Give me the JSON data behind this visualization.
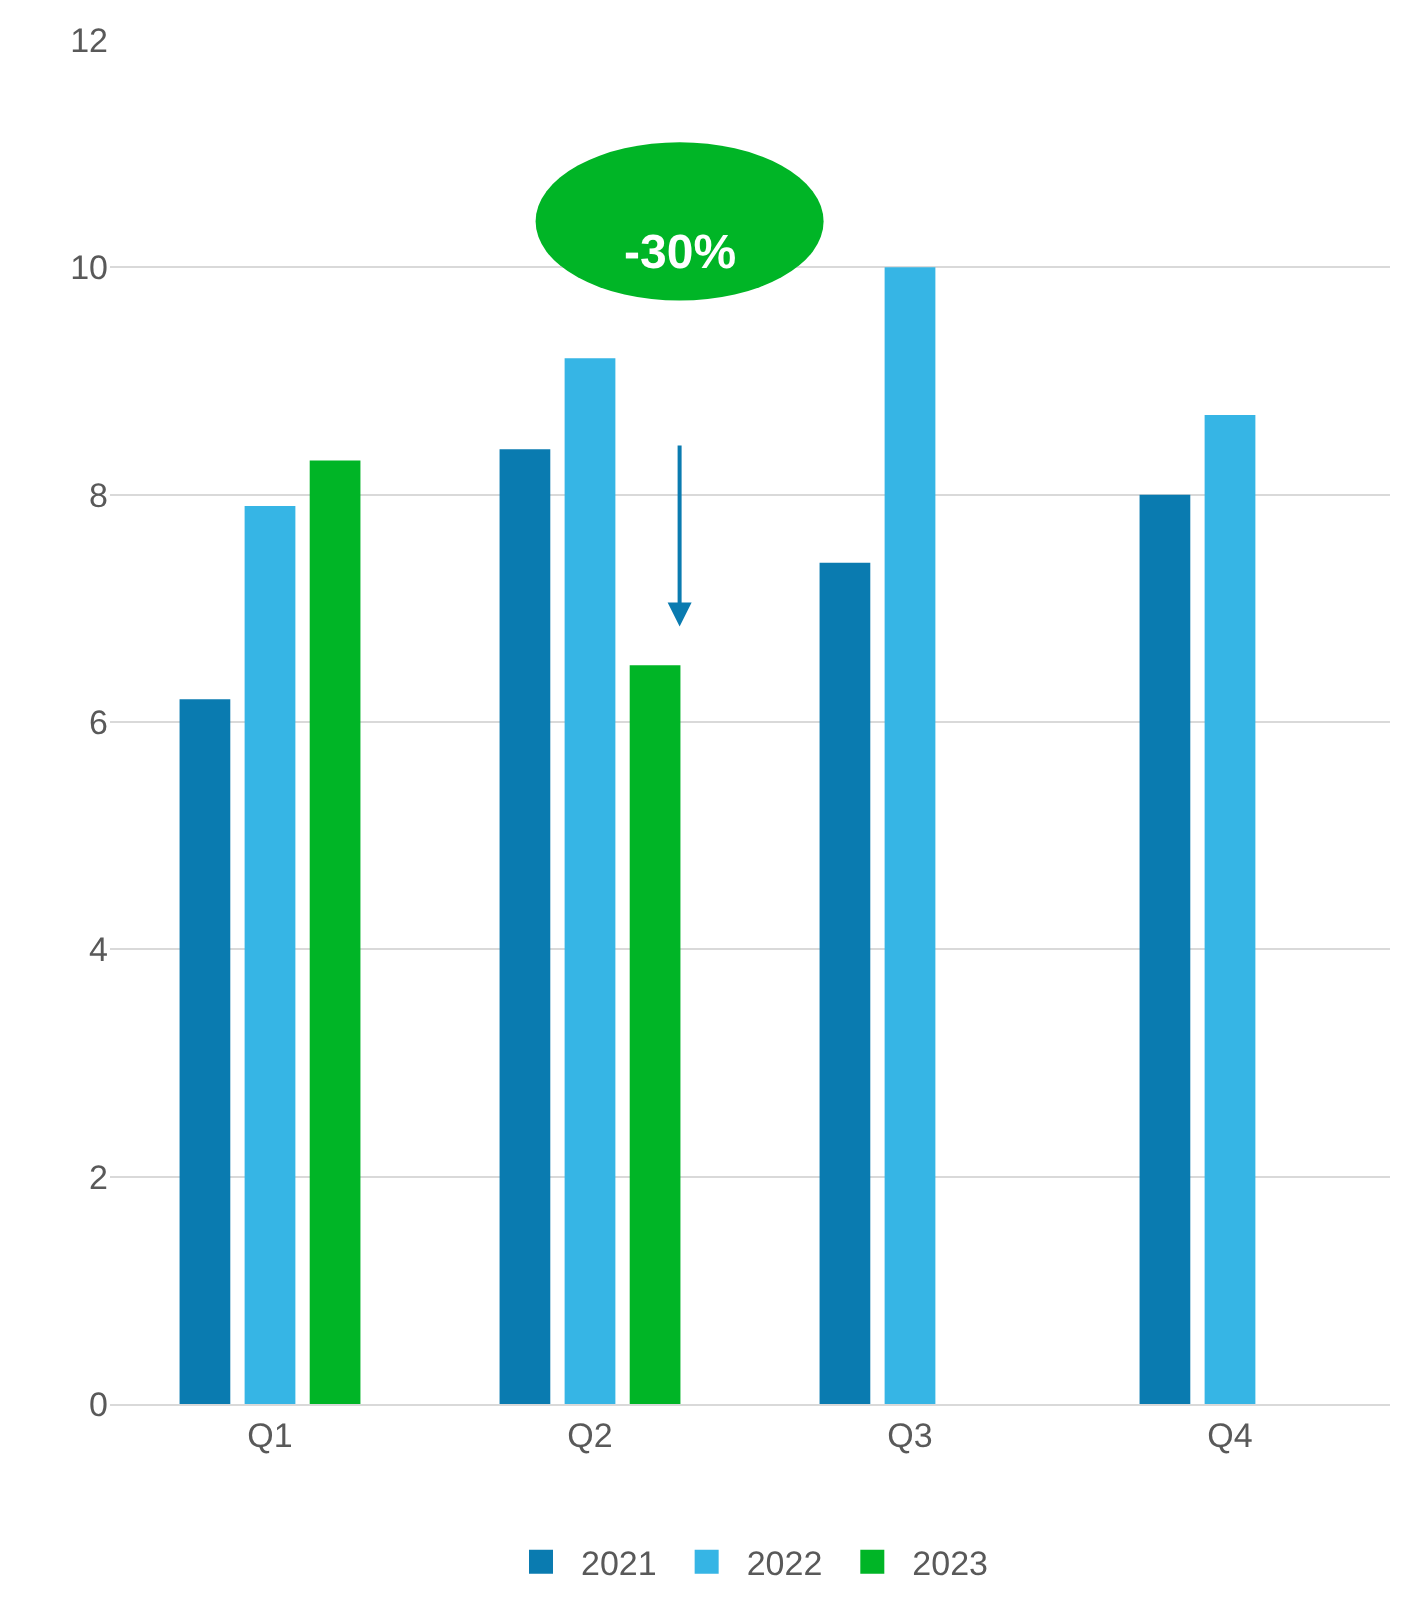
{
  "chart_data": {
    "type": "bar",
    "categories": [
      "Q1",
      "Q2",
      "Q3",
      "Q4"
    ],
    "series": [
      {
        "name": "2021",
        "color": "#0a7bb0",
        "values": [
          6.2,
          8.4,
          7.4,
          8.0
        ]
      },
      {
        "name": "2022",
        "color": "#36b5e5",
        "values": [
          7.9,
          9.2,
          10.0,
          8.7
        ]
      },
      {
        "name": "2023",
        "color": "#00b526",
        "values": [
          8.3,
          6.5,
          null,
          null
        ]
      }
    ],
    "ylim": [
      0,
      12
    ],
    "yticks": [
      0,
      2,
      4,
      6,
      8,
      10,
      12
    ],
    "grid": "y",
    "legend": "bottom",
    "annotations": [
      "-30%"
    ]
  }
}
